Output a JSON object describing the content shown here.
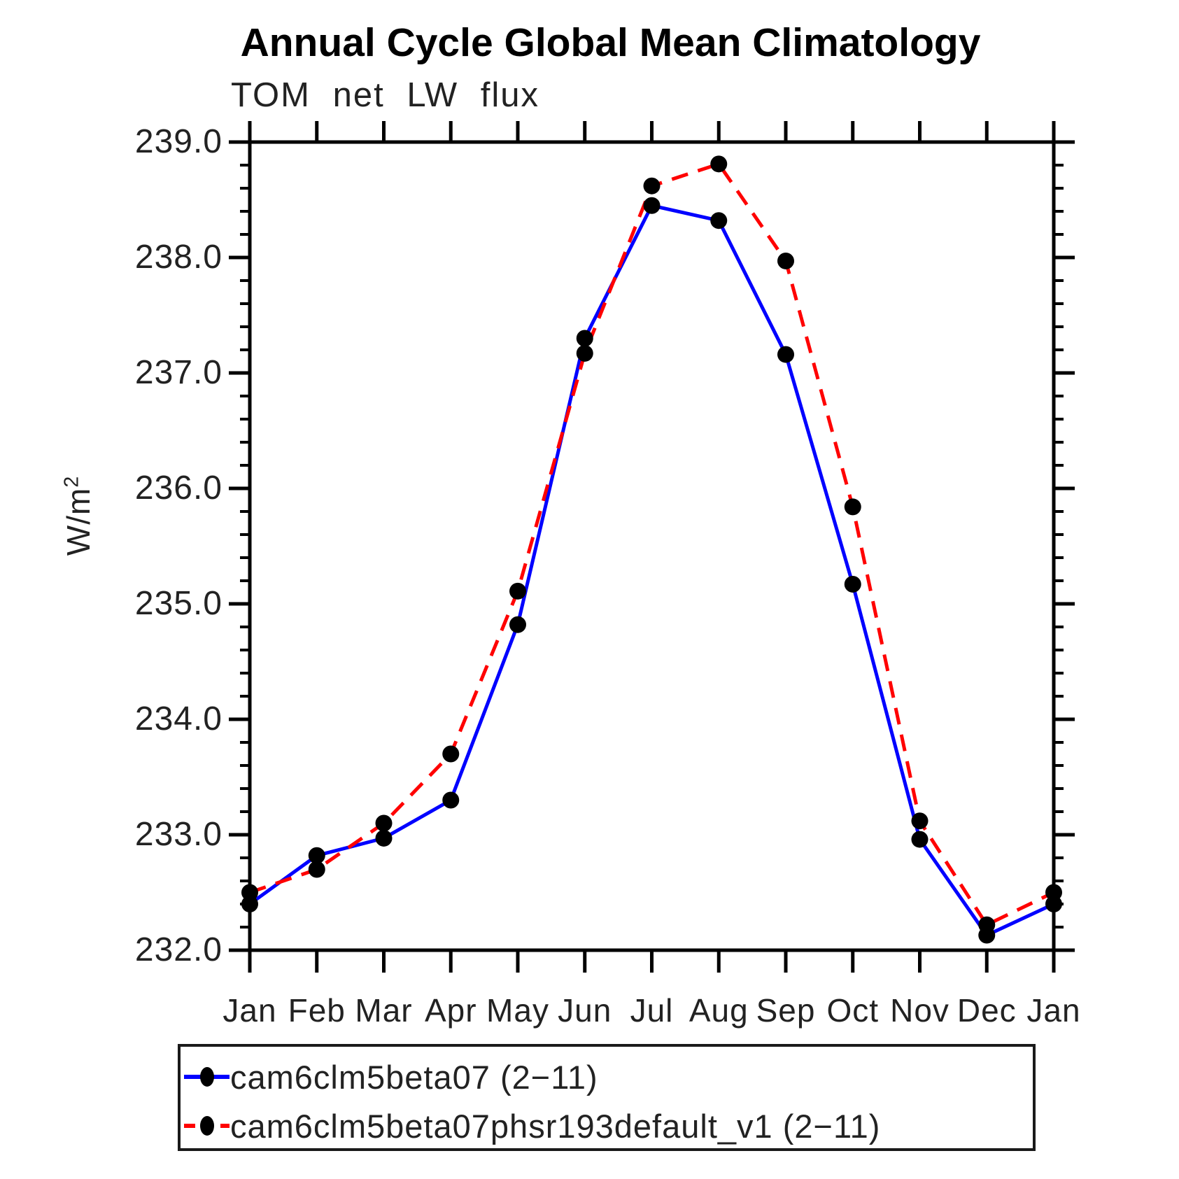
{
  "title": "Annual Cycle Global Mean Climatology",
  "subtitle": "TOM net LW flux",
  "ylabel_base": "W/m",
  "ylabel_exp": "2",
  "chart_data": {
    "type": "line",
    "x_categories": [
      "Jan",
      "Feb",
      "Mar",
      "Apr",
      "May",
      "Jun",
      "Jul",
      "Aug",
      "Sep",
      "Oct",
      "Nov",
      "Dec",
      "Jan"
    ],
    "xlabel": "",
    "ylabel": "W/m^2",
    "ylim": [
      232.0,
      239.0
    ],
    "y_major_tick_labels": [
      "239.0",
      "238.0",
      "237.0",
      "236.0",
      "235.0",
      "234.0",
      "233.0",
      "232.0"
    ],
    "y_minor_step": 0.2,
    "grid": false,
    "legend_position": "bottom",
    "marker_color": "#000000",
    "axis_color": "#000000",
    "series": [
      {
        "name": "cam6clm5beta07 (2−11)",
        "color": "#0000ff",
        "style": "solid",
        "values": [
          232.4,
          232.82,
          232.97,
          233.3,
          234.82,
          237.3,
          238.45,
          238.32,
          237.16,
          235.17,
          232.96,
          232.13,
          232.4
        ]
      },
      {
        "name": "cam6clm5beta07phsr193default_v1 (2−11)",
        "color": "#ff0000",
        "style": "dashed",
        "values": [
          232.5,
          232.7,
          233.1,
          233.7,
          235.11,
          237.17,
          238.62,
          238.81,
          237.97,
          235.84,
          233.12,
          232.22,
          232.5
        ]
      }
    ]
  }
}
